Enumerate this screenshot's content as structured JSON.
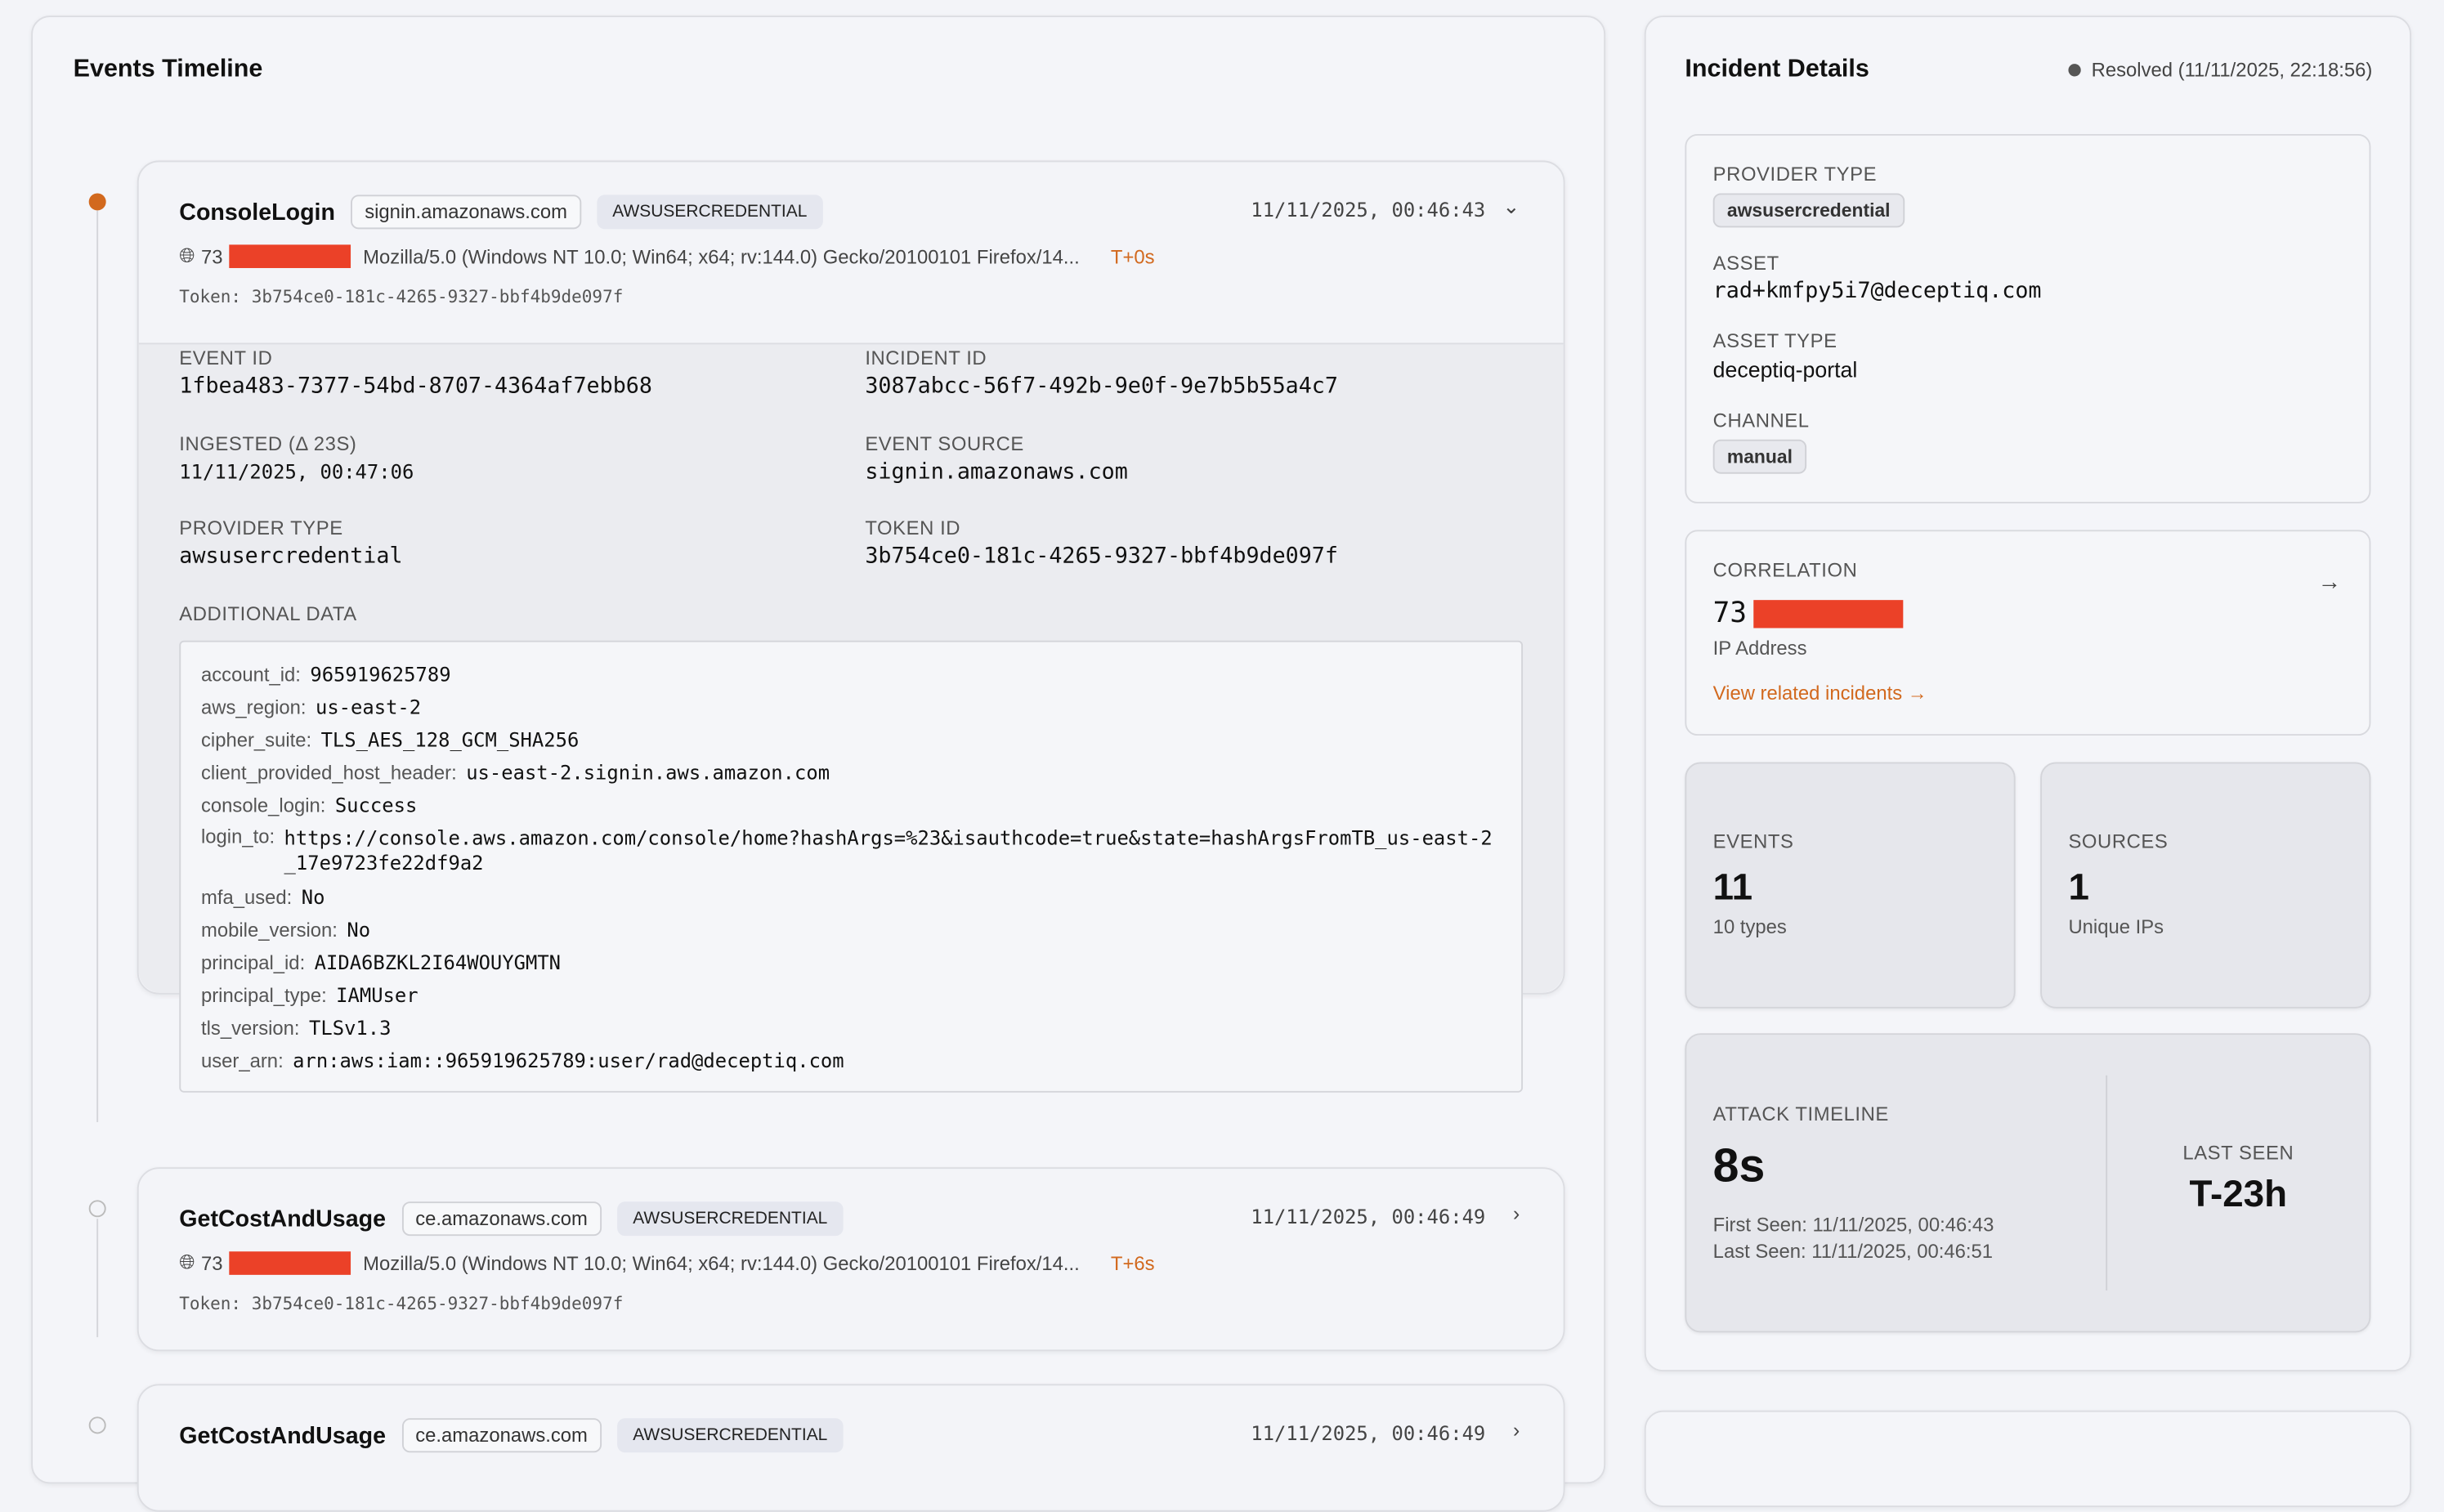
{
  "timeline": {
    "title": "Events Timeline",
    "events": [
      {
        "name": "ConsoleLogin",
        "source": "signin.amazonaws.com",
        "provider": "AWSUSERCREDENTIAL",
        "timestamp": "11/11/2025, 00:46:43",
        "ip_prefix": "73",
        "user_agent": "Mozilla/5.0 (Windows NT 10.0; Win64; x64; rv:144.0) Gecko/20100101 Firefox/14...",
        "offset": "T+0s",
        "token": "Token: 3b754ce0-181c-4265-9327-bbf4b9de097f",
        "expanded": true
      },
      {
        "name": "GetCostAndUsage",
        "source": "ce.amazonaws.com",
        "provider": "AWSUSERCREDENTIAL",
        "timestamp": "11/11/2025, 00:46:49",
        "ip_prefix": "73",
        "user_agent": "Mozilla/5.0 (Windows NT 10.0; Win64; x64; rv:144.0) Gecko/20100101 Firefox/14...",
        "offset": "T+6s",
        "token": "Token: 3b754ce0-181c-4265-9327-bbf4b9de097f",
        "expanded": false
      },
      {
        "name": "GetCostAndUsage",
        "source": "ce.amazonaws.com",
        "provider": "AWSUSERCREDENTIAL",
        "timestamp": "11/11/2025, 00:46:49",
        "expanded": false
      }
    ],
    "details": {
      "event_id_label": "EVENT ID",
      "event_id": "1fbea483-7377-54bd-8707-4364af7ebb68",
      "incident_id_label": "INCIDENT ID",
      "incident_id": "3087abcc-56f7-492b-9e0f-9e7b5b55a4c7",
      "ingested_label": "INGESTED (Δ 23S)",
      "ingested": "11/11/2025, 00:47:06",
      "event_source_label": "EVENT SOURCE",
      "event_source": "signin.amazonaws.com",
      "provider_type_label": "PROVIDER TYPE",
      "provider_type": "awsusercredential",
      "token_id_label": "TOKEN ID",
      "token_id": "3b754ce0-181c-4265-9327-bbf4b9de097f",
      "additional_label": "ADDITIONAL DATA",
      "additional": [
        {
          "k": "account_id:",
          "v": "965919625789"
        },
        {
          "k": "aws_region:",
          "v": "us-east-2"
        },
        {
          "k": "cipher_suite:",
          "v": "TLS_AES_128_GCM_SHA256"
        },
        {
          "k": "client_provided_host_header:",
          "v": "us-east-2.signin.aws.amazon.com"
        },
        {
          "k": "console_login:",
          "v": "Success"
        },
        {
          "k": "login_to:",
          "v": "https://console.aws.amazon.com/console/home?hashArgs=%23&isauthcode=true&state=hashArgsFromTB_us-east-2_17e9723fe22df9a2"
        },
        {
          "k": "mfa_used:",
          "v": "No"
        },
        {
          "k": "mobile_version:",
          "v": "No"
        },
        {
          "k": "principal_id:",
          "v": "AIDA6BZKL2I64WOUYGMTN"
        },
        {
          "k": "principal_type:",
          "v": "IAMUser"
        },
        {
          "k": "tls_version:",
          "v": "TLSv1.3"
        },
        {
          "k": "user_arn:",
          "v": "arn:aws:iam::965919625789:user/rad@deceptiq.com"
        }
      ]
    }
  },
  "incident": {
    "title": "Incident Details",
    "status": "Resolved (11/11/2025, 22:18:56)",
    "provider_type_label": "PROVIDER TYPE",
    "provider_type": "awsusercredential",
    "asset_label": "ASSET",
    "asset": "rad+kmfpy5i7@deceptiq.com",
    "asset_type_label": "ASSET TYPE",
    "asset_type": "deceptiq-portal",
    "channel_label": "CHANNEL",
    "channel": "manual",
    "correlation_label": "CORRELATION",
    "correlation_prefix": "73",
    "correlation_sub": "IP Address",
    "related_link": "View related incidents →",
    "events_label": "EVENTS",
    "events_count": "11",
    "events_sub": "10 types",
    "sources_label": "SOURCES",
    "sources_count": "1",
    "sources_sub": "Unique IPs",
    "attack_label": "ATTACK TIMELINE",
    "attack_duration": "8s",
    "first_seen": "First Seen: 11/11/2025, 00:46:43",
    "last_seen": "Last Seen: 11/11/2025, 00:46:51",
    "last_seen_label": "LAST SEEN",
    "last_seen_rel": "T-23h"
  },
  "colors": {
    "accent": "#d2691e",
    "redaction": "#eb4128",
    "status_dot": "#555555"
  }
}
